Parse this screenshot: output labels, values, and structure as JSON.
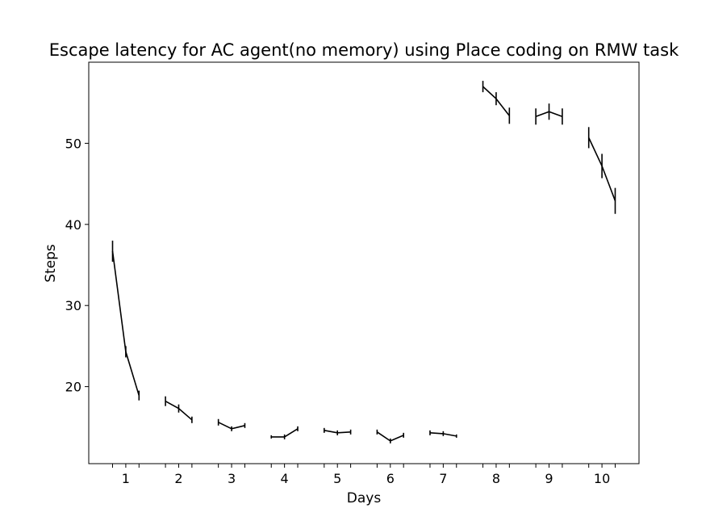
{
  "chart_data": {
    "type": "line",
    "title": "Escape latency for AC agent(no memory) using Place coding on RMW task",
    "xlabel": "Days",
    "ylabel": "Steps",
    "xlim": [
      0.3,
      10.7
    ],
    "ylim": [
      10.5,
      60.0
    ],
    "xticks": [
      1,
      2,
      3,
      4,
      5,
      6,
      7,
      8,
      9,
      10
    ],
    "xtick_labels": [
      "1",
      "2",
      "3",
      "4",
      "5",
      "6",
      "7",
      "8",
      "9",
      "10"
    ],
    "yticks": [
      20,
      30,
      40,
      50
    ],
    "ytick_labels": [
      "20",
      "30",
      "40",
      "50"
    ],
    "minor_xticks": [
      0.75,
      1.25,
      1.75,
      2.25,
      2.75,
      3.25,
      3.75,
      4.25,
      4.75,
      5.25,
      5.75,
      6.25,
      6.75,
      7.25,
      7.75,
      8.25,
      8.75,
      9.25,
      9.75,
      10.25
    ],
    "grid": false,
    "color": "#000000",
    "series": [
      {
        "x": [
          0.75,
          1.0,
          1.25
        ],
        "y": [
          36.7,
          24.3,
          18.9
        ],
        "err": [
          1.3,
          0.7,
          0.6
        ]
      },
      {
        "x": [
          1.75,
          2.0,
          2.25
        ],
        "y": [
          18.2,
          17.3,
          15.9
        ],
        "err": [
          0.6,
          0.5,
          0.4
        ]
      },
      {
        "x": [
          2.75,
          3.0,
          3.25
        ],
        "y": [
          15.6,
          14.8,
          15.2
        ],
        "err": [
          0.4,
          0.3,
          0.3
        ]
      },
      {
        "x": [
          3.75,
          4.0,
          4.25
        ],
        "y": [
          13.8,
          13.8,
          14.8
        ],
        "err": [
          0.2,
          0.3,
          0.3
        ]
      },
      {
        "x": [
          4.75,
          5.0,
          5.25
        ],
        "y": [
          14.6,
          14.3,
          14.4
        ],
        "err": [
          0.3,
          0.3,
          0.3
        ]
      },
      {
        "x": [
          5.75,
          6.0,
          6.25
        ],
        "y": [
          14.4,
          13.3,
          14.0
        ],
        "err": [
          0.3,
          0.3,
          0.3
        ]
      },
      {
        "x": [
          6.75,
          7.0,
          7.25
        ],
        "y": [
          14.3,
          14.2,
          13.9
        ],
        "err": [
          0.3,
          0.3,
          0.2
        ]
      },
      {
        "x": [
          7.75,
          8.0,
          8.25
        ],
        "y": [
          57.0,
          55.5,
          53.4
        ],
        "err": [
          0.7,
          0.8,
          1.0
        ]
      },
      {
        "x": [
          8.75,
          9.0,
          9.25
        ],
        "y": [
          53.3,
          53.9,
          53.3
        ],
        "err": [
          1.0,
          1.0,
          1.0
        ]
      },
      {
        "x": [
          9.75,
          10.0,
          10.25
        ],
        "y": [
          50.7,
          47.2,
          42.9
        ],
        "err": [
          1.3,
          1.5,
          1.6
        ]
      }
    ]
  }
}
